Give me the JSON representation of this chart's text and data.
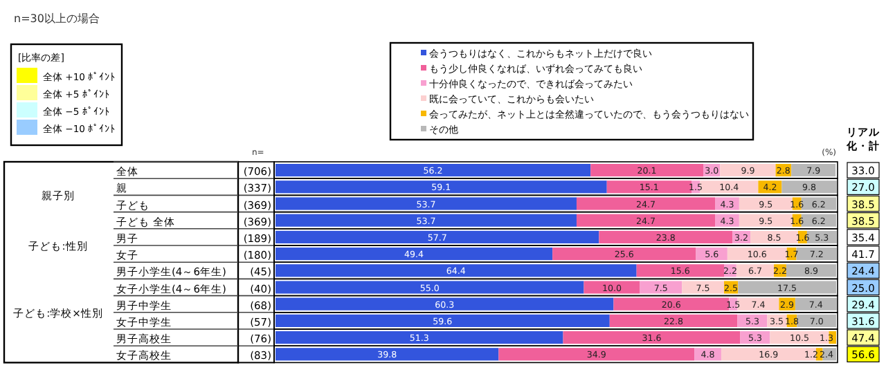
{
  "chart_data": [
    {
      "type": "other",
      "title": "n=30以上の場合",
      "xlabel": "n=",
      "categories": [
        null,
        null,
        "親子別",
        null,
        null,
        "子ども:性別",
        null,
        null,
        null,
        "子ども:学校×性別",
        null,
        null
      ],
      "value_labels": [
        "(706)",
        "(337)",
        "(369)",
        "(369)",
        "(189)",
        "(180)",
        "(45)",
        "(40)",
        "(68)",
        "(57)",
        "(76)",
        "(83)"
      ]
    },
    {
      "type": "bar",
      "orientation": "horizontal",
      "stacked": true,
      "legend": "top",
      "xlim": [
        0,
        100
      ],
      "tick_labels": "y",
      "annotations": [
        "(%)"
      ],
      "categories": [
        "全体",
        "親",
        "子ども",
        "子ども 全体",
        "男子",
        "女子",
        "男子小学生(4～6年生)",
        "女子小学生(4～6年生)",
        "男子中学生",
        "女子中学生",
        "男子高校生",
        "女子高校生"
      ],
      "series": [
        {
          "name": "会うつもりはなく、これからもネット上だけで良い",
          "color": "#3355dd",
          "values": [
            56.2,
            59.1,
            53.7,
            53.7,
            57.7,
            49.4,
            64.4,
            55.0,
            60.3,
            59.6,
            51.3,
            39.8
          ],
          "value_labels": [
            "56.2",
            "59.1",
            "53.7",
            "53.7",
            "57.7",
            "49.4",
            "64.4",
            "55.0",
            "60.3",
            "59.6",
            "51.3",
            "39.8"
          ]
        },
        {
          "name": "もう少し仲良くなれば、いずれ会ってみても良い",
          "color": "#f0609a",
          "values": [
            20.1,
            15.1,
            24.7,
            24.7,
            23.8,
            25.6,
            15.6,
            10.0,
            20.6,
            22.8,
            31.6,
            34.9
          ],
          "value_labels": [
            "20.1",
            "15.1",
            "24.7",
            "24.7",
            "23.8",
            "25.6",
            "15.6",
            "10.0",
            "20.6",
            "22.8",
            "31.6",
            "34.9"
          ]
        },
        {
          "name": "十分仲良くなったので、できれば会ってみたい",
          "color": "#f8a0d0",
          "values": [
            3.0,
            1.5,
            4.3,
            4.3,
            3.2,
            5.6,
            2.2,
            7.5,
            1.5,
            5.3,
            5.3,
            4.8
          ],
          "value_labels": [
            "3.0",
            "1.5",
            "4.3",
            "4.3",
            "3.2",
            "5.6",
            "2.2",
            "7.5",
            "1.5",
            "5.3",
            "5.3",
            "4.8"
          ]
        },
        {
          "name": "既に会っていて、これからも会いたい",
          "color": "#fcd0d0",
          "values": [
            9.9,
            10.4,
            9.5,
            9.5,
            8.5,
            10.6,
            6.7,
            7.5,
            7.4,
            3.5,
            10.5,
            16.9
          ],
          "value_labels": [
            "9.9",
            "10.4",
            "9.5",
            "9.5",
            "8.5",
            "10.6",
            "6.7",
            "7.5",
            "7.4",
            "3.5",
            "10.5",
            "16.9"
          ]
        },
        {
          "name": "会ってみたが、ネット上とは全然違っていたので、もう会うつもりはない",
          "color": "#f8b800",
          "values": [
            2.8,
            4.2,
            1.6,
            1.6,
            1.6,
            1.7,
            2.2,
            2.5,
            2.9,
            1.8,
            1.3,
            1.2
          ],
          "value_labels": [
            "2.8",
            "4.2",
            "1.6",
            "1.6",
            "1.6",
            "1.7",
            "2.2",
            "2.5",
            "2.9",
            "1.8",
            "1.3",
            "1.2"
          ]
        },
        {
          "name": "その他",
          "color": "#b8b8b8",
          "values": [
            7.9,
            9.8,
            6.2,
            6.2,
            5.3,
            7.2,
            8.9,
            17.5,
            7.4,
            7.0,
            null,
            2.4
          ],
          "value_labels": [
            "7.9",
            "9.8",
            "6.2",
            "6.2",
            "5.3",
            "7.2",
            "8.9",
            "17.5",
            "7.4",
            "7.0",
            null,
            "2.4"
          ]
        }
      ]
    },
    {
      "type": "other",
      "title": "リアル化・計",
      "legend_title": "[比率の差]",
      "legend": "top left",
      "value_labels": [
        "33.0",
        "27.0",
        "38.5",
        "38.5",
        "35.4",
        "41.7",
        "24.4",
        "25.0",
        "29.4",
        "31.6",
        "47.4",
        "56.6"
      ],
      "colors": [
        "#ffffff",
        "#ccffff",
        "#ffff99",
        "#ffff99",
        "#ffffff",
        "#ffffff",
        "#99ccff",
        "#99ccff",
        "#ccffff",
        "#ccffff",
        "#ffff99",
        "#ffff00"
      ],
      "series": [
        {
          "name": "全体 +10 ﾎﾟｲﾝﾄ",
          "color": "#ffff00"
        },
        {
          "name": "全体 +5 ﾎﾟｲﾝﾄ",
          "color": "#ffff99"
        },
        {
          "name": "全体 −5 ﾎﾟｲﾝﾄ",
          "color": "#ccffff"
        },
        {
          "name": "全体 −10 ﾎﾟｲﾝﾄ",
          "color": "#99ccff"
        }
      ]
    }
  ]
}
